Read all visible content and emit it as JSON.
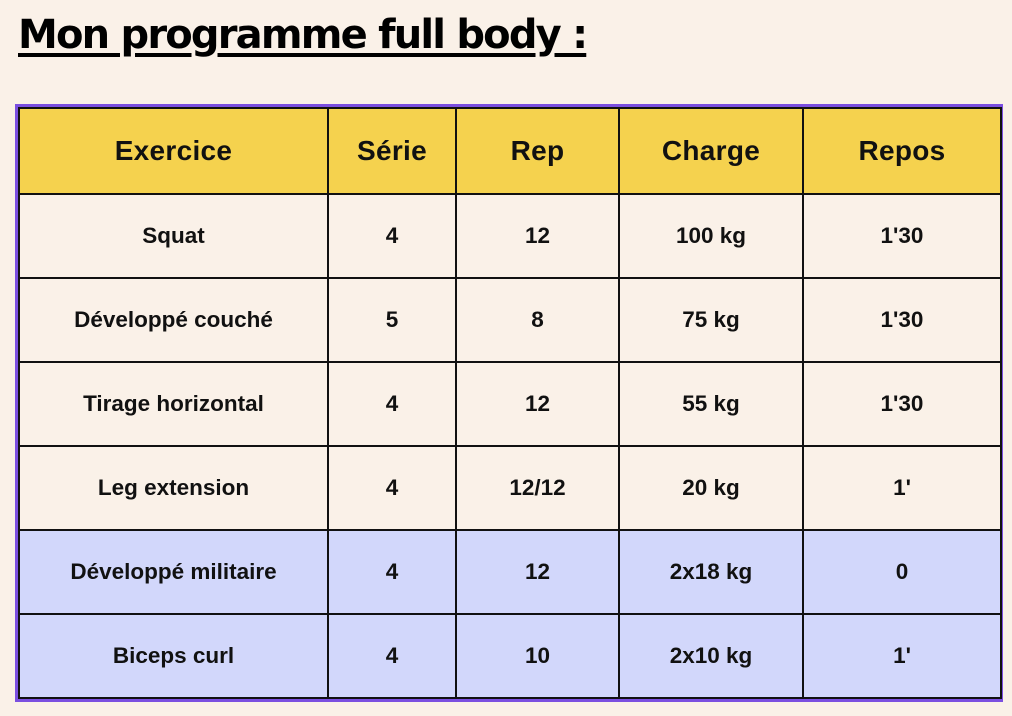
{
  "title": "Mon programme full body :",
  "colors": {
    "background": "#faf1e8",
    "header": "#f5d24e",
    "frame": "#7b4fe0",
    "row_beige": "#faf1e8",
    "row_lilac": "#d2d7fb"
  },
  "table": {
    "headers": [
      "Exercice",
      "Série",
      "Rep",
      "Charge",
      "Repos"
    ],
    "rows": [
      {
        "style": "beige",
        "cells": [
          "Squat",
          "4",
          "12",
          "100 kg",
          "1'30"
        ]
      },
      {
        "style": "beige",
        "cells": [
          "Développé couché",
          "5",
          "8",
          "75 kg",
          "1'30"
        ]
      },
      {
        "style": "beige",
        "cells": [
          "Tirage horizontal",
          "4",
          "12",
          "55 kg",
          "1'30"
        ]
      },
      {
        "style": "beige",
        "cells": [
          "Leg extension",
          "4",
          "12/12",
          "20 kg",
          "1'"
        ]
      },
      {
        "style": "lilac",
        "cells": [
          "Développé militaire",
          "4",
          "12",
          "2x18 kg",
          "0"
        ]
      },
      {
        "style": "lilac",
        "cells": [
          "Biceps curl",
          "4",
          "10",
          "2x10 kg",
          "1'"
        ]
      }
    ]
  }
}
